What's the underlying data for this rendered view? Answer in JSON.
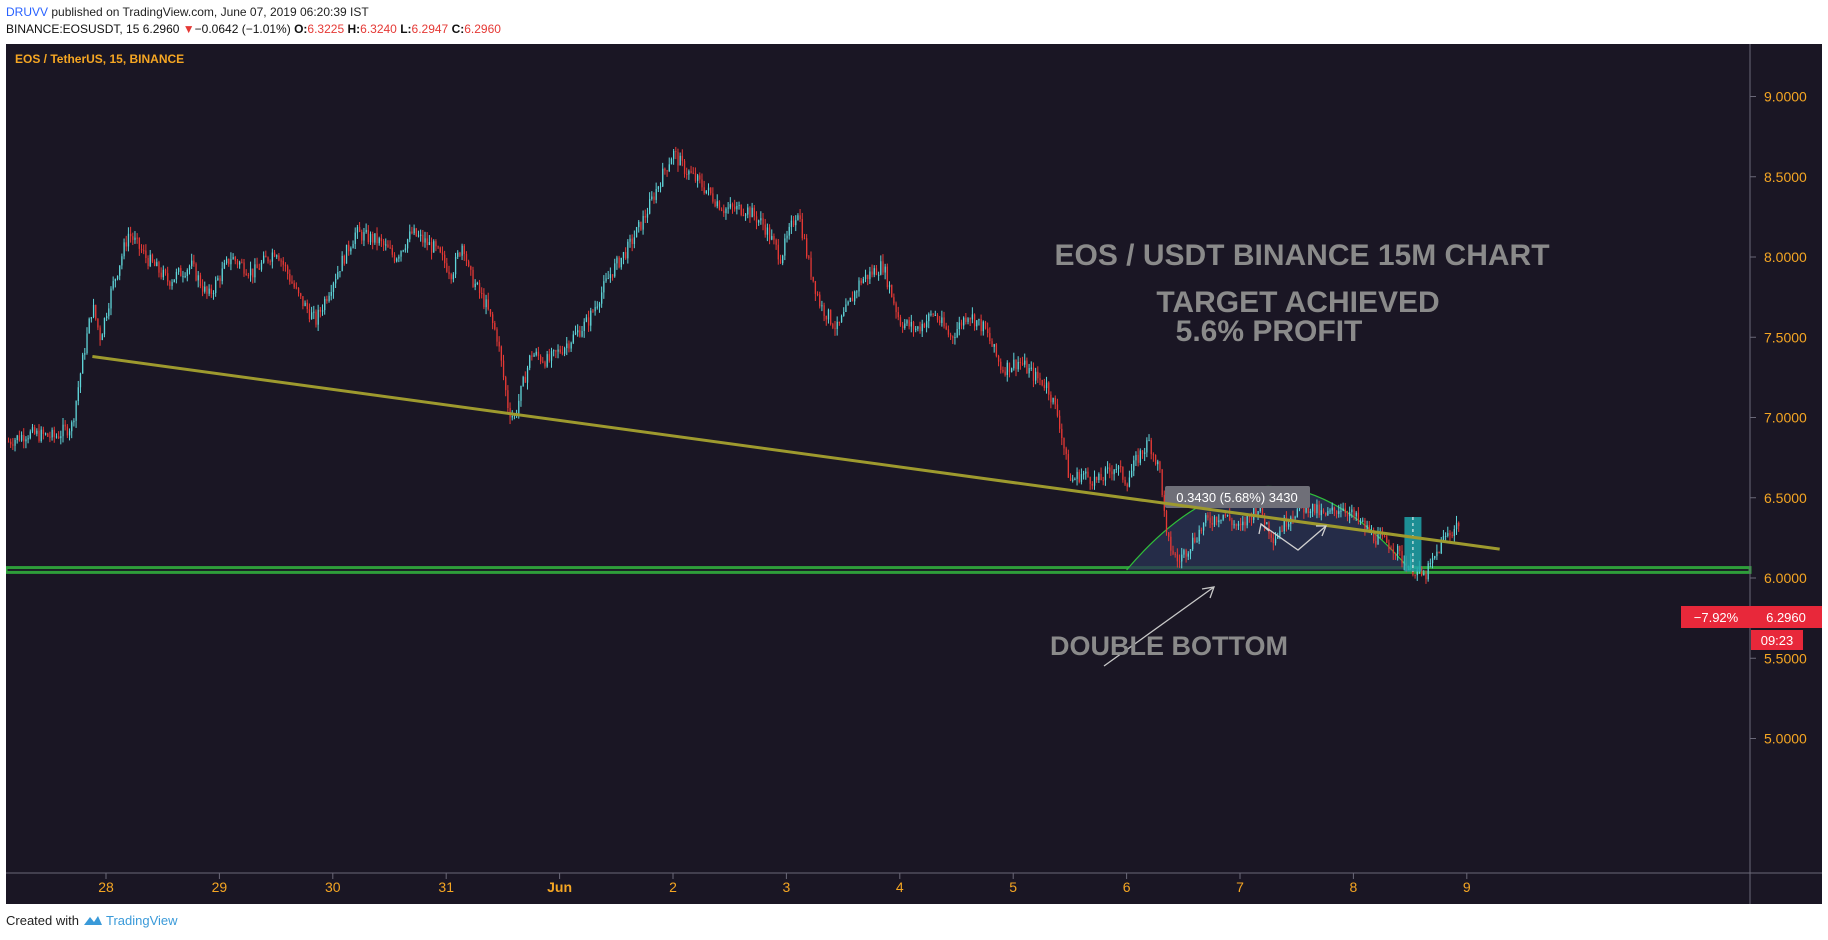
{
  "header": {
    "author": "DRUVV",
    "published_text": "published on TradingView.com, June 07, 2019 06:20:39 IST",
    "symbol_info": "BINANCE:EOSUSDT, 15",
    "last_price": "6.2960",
    "change_arrow": "▼",
    "change": "−0.0642 (−1.01%)",
    "ohlc": [
      {
        "key": "O:",
        "value": "6.3225"
      },
      {
        "key": "H:",
        "value": "6.3240"
      },
      {
        "key": "L:",
        "value": "6.2947"
      },
      {
        "key": "C:",
        "value": "6.2960"
      }
    ]
  },
  "chart_data": {
    "type": "candlestick",
    "title": "EOS / TetherUS, 15, BINANCE",
    "x_ticks": [
      "28",
      "29",
      "30",
      "31",
      "Jun",
      "2",
      "3",
      "4",
      "5",
      "6",
      "7",
      "8",
      "9"
    ],
    "y_ticks": [
      "9.0000",
      "8.5000",
      "8.0000",
      "7.5000",
      "7.0000",
      "6.5000",
      "6.0000",
      "5.5000",
      "5.0000"
    ],
    "ylim": [
      4.97,
      9.36
    ],
    "xlim": [
      27.14,
      40.29
    ],
    "price_path": [
      [
        27.14,
        6.85
      ],
      [
        27.3,
        6.9
      ],
      [
        27.55,
        6.88
      ],
      [
        27.7,
        6.95
      ],
      [
        27.78,
        7.3
      ],
      [
        27.88,
        7.7
      ],
      [
        27.95,
        7.5
      ],
      [
        28.05,
        7.8
      ],
      [
        28.2,
        8.15
      ],
      [
        28.35,
        8.0
      ],
      [
        28.55,
        7.85
      ],
      [
        28.75,
        7.95
      ],
      [
        28.9,
        7.75
      ],
      [
        29.1,
        8.0
      ],
      [
        29.3,
        7.9
      ],
      [
        29.5,
        8.05
      ],
      [
        29.7,
        7.75
      ],
      [
        29.85,
        7.6
      ],
      [
        30.0,
        7.85
      ],
      [
        30.2,
        8.15
      ],
      [
        30.4,
        8.1
      ],
      [
        30.55,
        8.0
      ],
      [
        30.7,
        8.15
      ],
      [
        30.9,
        8.05
      ],
      [
        31.05,
        7.9
      ],
      [
        31.15,
        8.1
      ],
      [
        31.2,
        7.9
      ],
      [
        31.35,
        7.7
      ],
      [
        31.45,
        7.5
      ],
      [
        31.55,
        7.05
      ],
      [
        31.6,
        7.0
      ],
      [
        31.75,
        7.4
      ],
      [
        31.9,
        7.35
      ],
      [
        32.05,
        7.45
      ],
      [
        32.25,
        7.6
      ],
      [
        32.45,
        7.9
      ],
      [
        32.6,
        8.05
      ],
      [
        32.75,
        8.25
      ],
      [
        32.9,
        8.5
      ],
      [
        33.0,
        8.65
      ],
      [
        33.1,
        8.55
      ],
      [
        33.25,
        8.45
      ],
      [
        33.45,
        8.3
      ],
      [
        33.65,
        8.3
      ],
      [
        33.8,
        8.2
      ],
      [
        33.95,
        8.0
      ],
      [
        34.1,
        8.3
      ],
      [
        34.2,
        7.95
      ],
      [
        34.3,
        7.7
      ],
      [
        34.45,
        7.55
      ],
      [
        34.65,
        7.85
      ],
      [
        34.85,
        7.95
      ],
      [
        35.0,
        7.6
      ],
      [
        35.15,
        7.55
      ],
      [
        35.3,
        7.65
      ],
      [
        35.45,
        7.5
      ],
      [
        35.6,
        7.65
      ],
      [
        35.75,
        7.55
      ],
      [
        35.9,
        7.3
      ],
      [
        36.05,
        7.35
      ],
      [
        36.2,
        7.25
      ],
      [
        36.3,
        7.2
      ],
      [
        36.4,
        7.0
      ],
      [
        36.5,
        6.6
      ],
      [
        36.6,
        6.65
      ],
      [
        36.75,
        6.6
      ],
      [
        36.9,
        6.7
      ],
      [
        37.0,
        6.6
      ],
      [
        37.1,
        6.75
      ],
      [
        37.2,
        6.85
      ],
      [
        37.3,
        6.65
      ],
      [
        37.35,
        6.25
      ],
      [
        37.45,
        6.1
      ],
      [
        37.55,
        6.2
      ],
      [
        37.7,
        6.35
      ],
      [
        37.85,
        6.4
      ],
      [
        38.0,
        6.3
      ],
      [
        38.15,
        6.45
      ],
      [
        38.3,
        6.25
      ],
      [
        38.45,
        6.4
      ],
      [
        38.6,
        6.45
      ],
      [
        38.75,
        6.38
      ],
      [
        38.9,
        6.45
      ],
      [
        39.05,
        6.35
      ],
      [
        39.2,
        6.25
      ],
      [
        39.35,
        6.2
      ],
      [
        39.45,
        6.1
      ],
      [
        39.55,
        6.05
      ],
      [
        39.62,
        6.0
      ],
      [
        39.7,
        6.1
      ],
      [
        39.8,
        6.25
      ],
      [
        39.88,
        6.3
      ],
      [
        39.93,
        6.35
      ]
    ],
    "trendline": {
      "from": [
        27.88,
        7.38
      ],
      "to": [
        40.29,
        6.18
      ]
    },
    "support_zone": [
      6.035,
      6.065
    ],
    "measure_label": "0.3430 (5.68%) 3430",
    "annotations": [
      "EOS / USDT BINANCE 15M CHART",
      "TARGET ACHIEVED",
      "5.6% PROFIT",
      "DOUBLE BOTTOM"
    ],
    "price_tag": {
      "change": "−7.92%",
      "price": "6.2960",
      "countdown": "09:23"
    }
  },
  "footer": {
    "created_with": "Created with",
    "brand": "TradingView"
  },
  "colors": {
    "background": "#1a1624",
    "up": "#5fd4d8",
    "down": "#e53935",
    "axis_text": "#f5a623",
    "trendline": "#9e9a2e",
    "support": "#2e9e3a",
    "annotation": "#8a8a8a"
  }
}
